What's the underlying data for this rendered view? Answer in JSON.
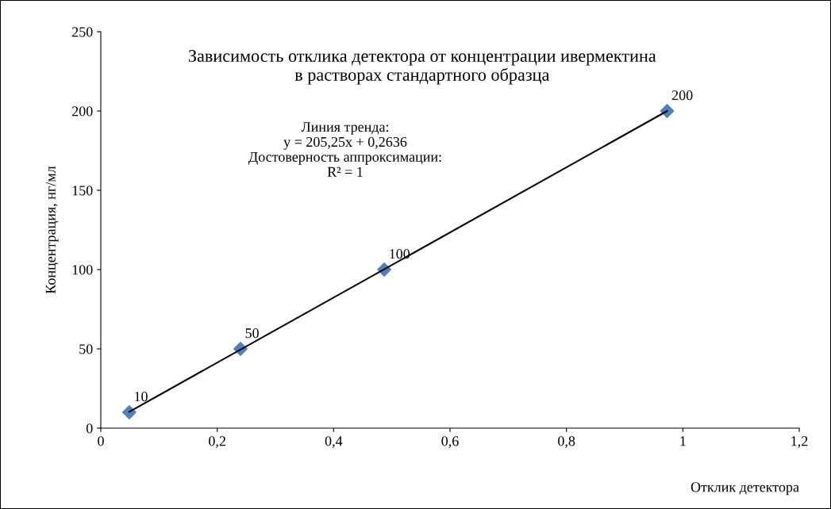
{
  "chart_data": {
    "type": "scatter",
    "title": "Зависимость отклика детектора от концентрации ивермектина\nв растворах стандартного образца",
    "xlabel": "Отклик детектора",
    "ylabel": "Концентрация, нг/мл",
    "annotations": [
      "Линия тренда:\ny = 205,25x + 0,2636\nДостоверность аппроксимации:\nR² = 1"
    ],
    "series": [
      {
        "color": "#4f81bd",
        "x": [
          0.049,
          0.24,
          0.487,
          0.973
        ],
        "values": [
          10,
          50,
          100,
          200
        ],
        "value_labels": [
          "10",
          "50",
          "100",
          "200"
        ],
        "marker": "diamond"
      },
      {
        "type": "line",
        "color": "#000000",
        "x": [
          0.049,
          0.973
        ],
        "values": [
          10.3,
          200.0
        ],
        "marker": "none",
        "line_style": "solid"
      }
    ],
    "xlim": [
      0,
      1.2
    ],
    "xticks": [
      0,
      {
        "value": 0.2,
        "label": "0,2"
      },
      {
        "value": 0.4,
        "label": "0,4"
      },
      {
        "value": 0.6,
        "label": "0,6"
      },
      {
        "value": 0.8,
        "label": "0,8"
      },
      1,
      {
        "value": 1.2,
        "label": "1,2"
      }
    ],
    "ylim": [
      0,
      250
    ],
    "yticks": [
      0,
      50,
      100,
      150,
      200,
      250
    ],
    "grid": false,
    "legend": false
  }
}
